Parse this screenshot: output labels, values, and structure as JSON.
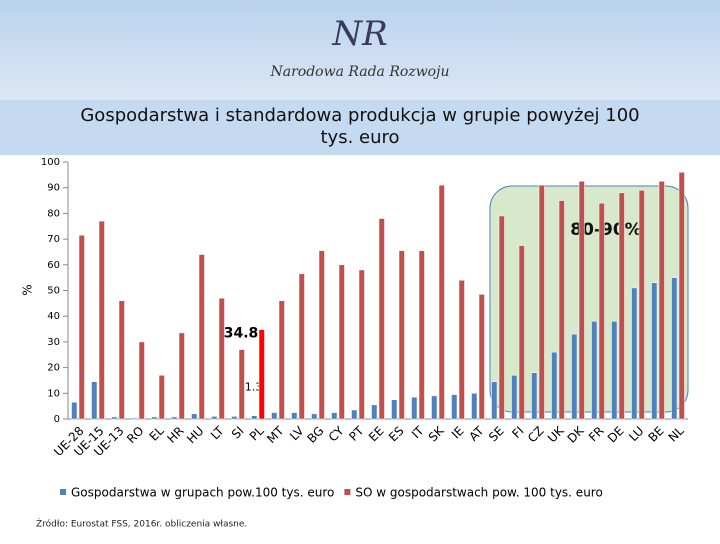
{
  "header": {
    "logo": "NR",
    "organization": "Narodowa Rada Rozwoju"
  },
  "chart_data": {
    "type": "bar",
    "title": "Gospodarstwa i standardowa produkcja w grupie powyżej 100 tys. euro",
    "y_label": "%",
    "categories": [
      "UE-28",
      "UE-15",
      "UE-13",
      "RO",
      "EL",
      "HR",
      "HU",
      "LT",
      "SI",
      "PL",
      "MT",
      "LV",
      "BG",
      "CY",
      "PT",
      "EE",
      "ES",
      "IT",
      "SK",
      "IE",
      "AT",
      "SE",
      "FI",
      "CZ",
      "UK",
      "DK",
      "FR",
      "DE",
      "LU",
      "BE",
      "NL"
    ],
    "series": [
      {
        "name": "Gospodarstwa w grupach pow.100 tys. euro",
        "color": "#4f81bd",
        "values": [
          6.5,
          14.5,
          0.8,
          0.4,
          0.8,
          0.8,
          2,
          1,
          1,
          1.3,
          2.5,
          2.5,
          2,
          2.5,
          3.5,
          5.5,
          7.5,
          8.5,
          9,
          9.5,
          10,
          14.5,
          17,
          18,
          26,
          33,
          38,
          38,
          51,
          53,
          55
        ]
      },
      {
        "name": "SO w gospodarstwach pow. 100 tys. euro",
        "color": "#c0504d",
        "values": [
          71.5,
          77,
          46,
          30,
          17,
          33.5,
          64,
          47,
          27,
          34.8,
          46,
          56.5,
          65.5,
          60,
          58,
          78,
          65.5,
          65.5,
          91,
          54,
          48.5,
          79,
          67.5,
          91,
          85,
          92.5,
          84,
          88,
          89,
          92.5,
          96
        ]
      }
    ],
    "highlight": {
      "category": "PL",
      "color": "#ff0000"
    },
    "annotation": "80-90%",
    "ylim": [
      0,
      100
    ],
    "yticks": [
      0,
      10,
      20,
      30,
      40,
      50,
      60,
      70,
      80,
      90,
      100
    ],
    "source": "Źródło: Eurostat FSS, 2016r. obliczenia własne."
  }
}
